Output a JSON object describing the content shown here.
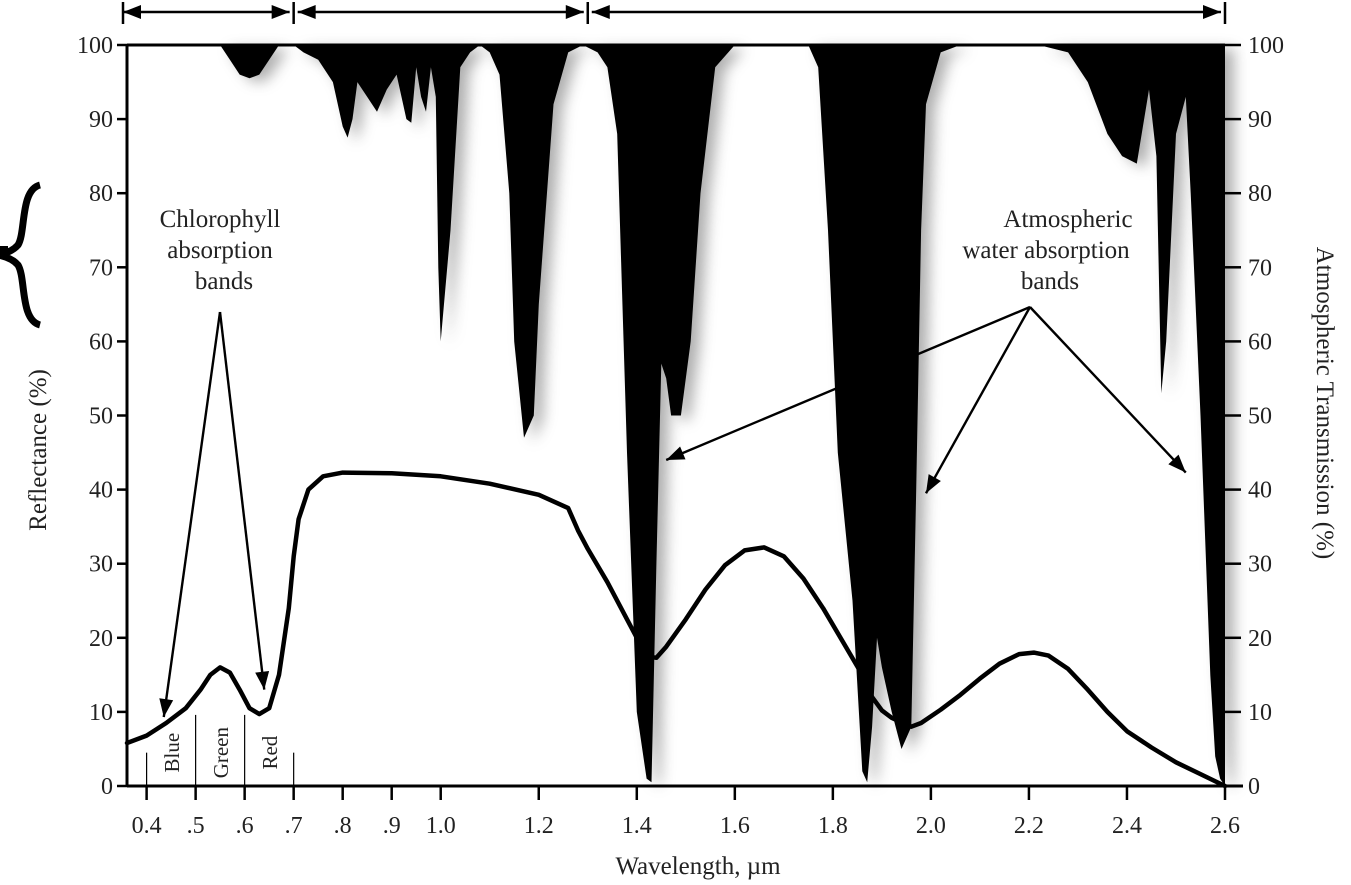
{
  "chart_data": {
    "type": "line",
    "title": "",
    "xlabel": "Wavelength, µm",
    "ylabel": "Reflectance (%)",
    "y2label": "Atmospheric  Transmission (%)",
    "xlim": [
      0.36,
      2.6
    ],
    "ylim": [
      0,
      100
    ],
    "y2lim": [
      0,
      100
    ],
    "x_ticks": [
      {
        "value": 0.4,
        "label": "0.4"
      },
      {
        "value": 0.5,
        "label": ".5"
      },
      {
        "value": 0.6,
        "label": ".6"
      },
      {
        "value": 0.7,
        "label": ".7"
      },
      {
        "value": 0.8,
        "label": ".8"
      },
      {
        "value": 0.9,
        "label": ".9"
      },
      {
        "value": 1.0,
        "label": "1.0"
      },
      {
        "value": 1.2,
        "label": "1.2"
      },
      {
        "value": 1.4,
        "label": "1.4"
      },
      {
        "value": 1.6,
        "label": "1.6"
      },
      {
        "value": 1.8,
        "label": "1.8"
      },
      {
        "value": 2.0,
        "label": "2.0"
      },
      {
        "value": 2.2,
        "label": "2.2"
      },
      {
        "value": 2.4,
        "label": "2.4"
      },
      {
        "value": 2.6,
        "label": "2.6"
      }
    ],
    "y_ticks": [
      "0",
      "10",
      "20",
      "30",
      "40",
      "50",
      "60",
      "70",
      "80",
      "90",
      "100"
    ],
    "y2_ticks": [
      "0",
      "10",
      "20",
      "30",
      "40",
      "50",
      "60",
      "70",
      "80",
      "90",
      "100"
    ],
    "series": [
      {
        "kind": "reflectance-curve",
        "color": "#000000",
        "x": [
          0.36,
          0.4,
          0.44,
          0.48,
          0.51,
          0.53,
          0.55,
          0.57,
          0.59,
          0.61,
          0.63,
          0.65,
          0.67,
          0.69,
          0.7,
          0.71,
          0.73,
          0.76,
          0.8,
          0.9,
          1.0,
          1.1,
          1.2,
          1.26,
          1.28,
          1.3,
          1.34,
          1.38,
          1.4,
          1.42,
          1.44,
          1.46,
          1.5,
          1.54,
          1.58,
          1.62,
          1.66,
          1.7,
          1.74,
          1.78,
          1.82,
          1.86,
          1.88,
          1.9,
          1.92,
          1.94,
          1.96,
          1.98,
          2.02,
          2.06,
          2.1,
          2.14,
          2.18,
          2.21,
          2.24,
          2.28,
          2.32,
          2.36,
          2.4,
          2.45,
          2.5,
          2.55,
          2.6
        ],
        "y": [
          5.8,
          6.8,
          8.5,
          10.5,
          13.0,
          15.0,
          16.0,
          15.3,
          13.0,
          10.5,
          9.7,
          10.5,
          15.0,
          24.0,
          31.0,
          36.0,
          40.0,
          41.8,
          42.3,
          42.2,
          41.8,
          40.8,
          39.3,
          37.5,
          34.5,
          32.0,
          27.5,
          22.5,
          20.0,
          17.5,
          17.3,
          18.8,
          22.5,
          26.5,
          29.8,
          31.8,
          32.2,
          31.0,
          28.0,
          24.0,
          19.5,
          15.0,
          12.0,
          10.2,
          9.2,
          8.6,
          8.0,
          8.5,
          10.3,
          12.3,
          14.5,
          16.5,
          17.8,
          18.0,
          17.6,
          15.8,
          13.0,
          10.0,
          7.4,
          5.2,
          3.2,
          1.6,
          0.0
        ]
      },
      {
        "kind": "atmospheric-transmission",
        "color": "#000000",
        "x": [
          0.36,
          0.55,
          0.57,
          0.59,
          0.61,
          0.63,
          0.65,
          0.67,
          0.7,
          0.72,
          0.75,
          0.78,
          0.8,
          0.81,
          0.82,
          0.83,
          0.85,
          0.87,
          0.89,
          0.91,
          0.92,
          0.93,
          0.94,
          0.95,
          0.96,
          0.97,
          0.98,
          0.99,
          0.995,
          1.0,
          1.02,
          1.04,
          1.06,
          1.08,
          1.1,
          1.12,
          1.14,
          1.15,
          1.17,
          1.19,
          1.2,
          1.23,
          1.26,
          1.29,
          1.32,
          1.34,
          1.36,
          1.38,
          1.4,
          1.42,
          1.43,
          1.44,
          1.45,
          1.46,
          1.47,
          1.49,
          1.51,
          1.53,
          1.56,
          1.6,
          1.66,
          1.72,
          1.75,
          1.77,
          1.79,
          1.81,
          1.84,
          1.86,
          1.87,
          1.88,
          1.89,
          1.9,
          1.92,
          1.94,
          1.96,
          1.97,
          1.98,
          1.99,
          2.02,
          2.06,
          2.1,
          2.16,
          2.22,
          2.28,
          2.32,
          2.36,
          2.39,
          2.42,
          2.43,
          2.445,
          2.46,
          2.47,
          2.48,
          2.5,
          2.52,
          2.53,
          2.55,
          2.57,
          2.58,
          2.59,
          2.6
        ],
        "y": [
          100,
          100,
          98,
          96,
          95.5,
          96,
          98,
          100,
          100,
          99,
          98,
          95,
          89,
          87.5,
          90,
          95,
          93,
          91,
          94,
          96,
          93,
          90,
          89.5,
          97,
          93,
          91,
          97,
          93,
          70,
          60,
          75,
          97,
          99,
          100,
          99,
          96,
          80,
          60,
          47,
          50,
          65,
          92,
          99,
          100,
          99,
          97,
          88,
          45,
          10,
          1,
          0.5,
          30,
          57,
          55,
          50,
          50,
          60,
          80,
          97,
          100,
          100,
          100,
          100,
          97,
          75,
          45,
          25,
          2,
          0.5,
          8,
          20,
          16,
          10,
          5,
          8,
          40,
          75,
          92,
          99,
          100,
          100,
          100,
          100,
          99,
          95,
          88,
          85,
          84,
          88,
          94,
          85,
          53,
          60,
          88,
          93,
          80,
          50,
          15,
          4,
          1,
          0
        ]
      }
    ],
    "annotations": {
      "chlorophyll": [
        "Chlorophyll",
        "absorption",
        "bands"
      ],
      "water": [
        "Atmospheric",
        "water absorption",
        "bands"
      ]
    },
    "bands": [
      {
        "label": "Blue",
        "from": 0.4,
        "to": 0.5
      },
      {
        "label": "Green",
        "from": 0.5,
        "to": 0.6
      },
      {
        "label": "Red",
        "from": 0.6,
        "to": 0.7
      }
    ],
    "regions": [
      {
        "from": 0.36,
        "to": 0.7
      },
      {
        "from": 0.7,
        "to": 1.3
      },
      {
        "from": 1.3,
        "to": 2.6
      }
    ],
    "grid": false,
    "legend": "none"
  }
}
